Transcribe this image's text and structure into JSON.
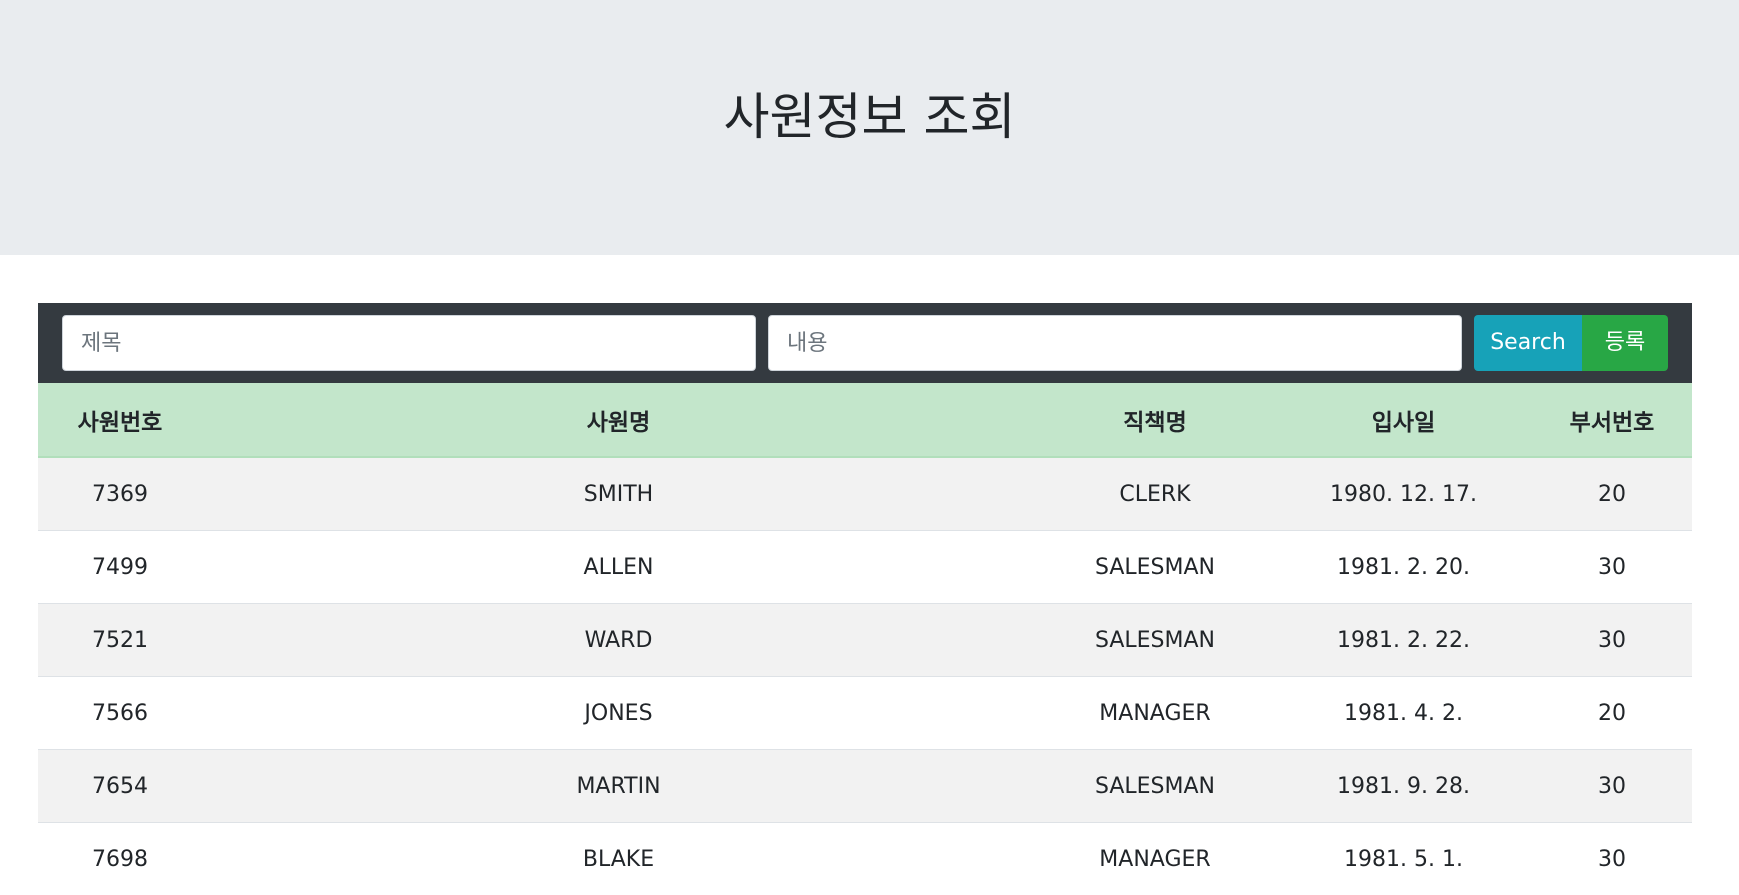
{
  "header": {
    "title": "사원정보 조회"
  },
  "search": {
    "title_placeholder": "제목",
    "content_placeholder": "내용",
    "search_label": "Search",
    "register_label": "등록"
  },
  "table": {
    "headers": [
      "사원번호",
      "사원명",
      "직책명",
      "입사일",
      "부서번호"
    ],
    "rows": [
      [
        "7369",
        "SMITH",
        "CLERK",
        "1980. 12. 17.",
        "20"
      ],
      [
        "7499",
        "ALLEN",
        "SALESMAN",
        "1981. 2. 20.",
        "30"
      ],
      [
        "7521",
        "WARD",
        "SALESMAN",
        "1981. 2. 22.",
        "30"
      ],
      [
        "7566",
        "JONES",
        "MANAGER",
        "1981. 4. 2.",
        "20"
      ],
      [
        "7654",
        "MARTIN",
        "SALESMAN",
        "1981. 9. 28.",
        "30"
      ],
      [
        "7698",
        "BLAKE",
        "MANAGER",
        "1981. 5. 1.",
        "30"
      ]
    ]
  }
}
